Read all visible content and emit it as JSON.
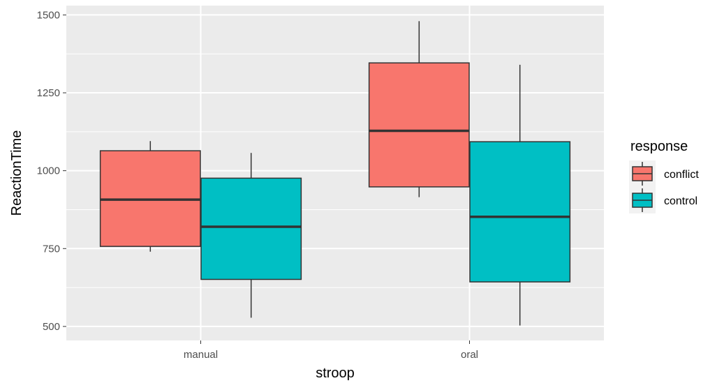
{
  "chart_data": {
    "type": "box",
    "xlabel": "stroop",
    "ylabel": "ReactionTime",
    "ylim": [
      455,
      1530
    ],
    "yticks": [
      500,
      750,
      1000,
      1250,
      1500
    ],
    "grid": true,
    "categories": [
      "manual",
      "oral"
    ],
    "legend": {
      "title": "response",
      "position": "right",
      "entries": [
        "conflict",
        "control"
      ]
    },
    "series": [
      {
        "name": "conflict",
        "color": "#F8766D",
        "boxes": [
          {
            "category": "manual",
            "min": 740,
            "q1": 757,
            "median": 907,
            "q3": 1064,
            "max": 1095
          },
          {
            "category": "oral",
            "min": 915,
            "q1": 948,
            "median": 1128,
            "q3": 1346,
            "max": 1480
          }
        ]
      },
      {
        "name": "control",
        "color": "#00BFC4",
        "boxes": [
          {
            "category": "manual",
            "min": 528,
            "q1": 651,
            "median": 820,
            "q3": 976,
            "max": 1057
          },
          {
            "category": "oral",
            "min": 503,
            "q1": 643,
            "median": 852,
            "q3": 1093,
            "max": 1340
          }
        ]
      }
    ]
  }
}
